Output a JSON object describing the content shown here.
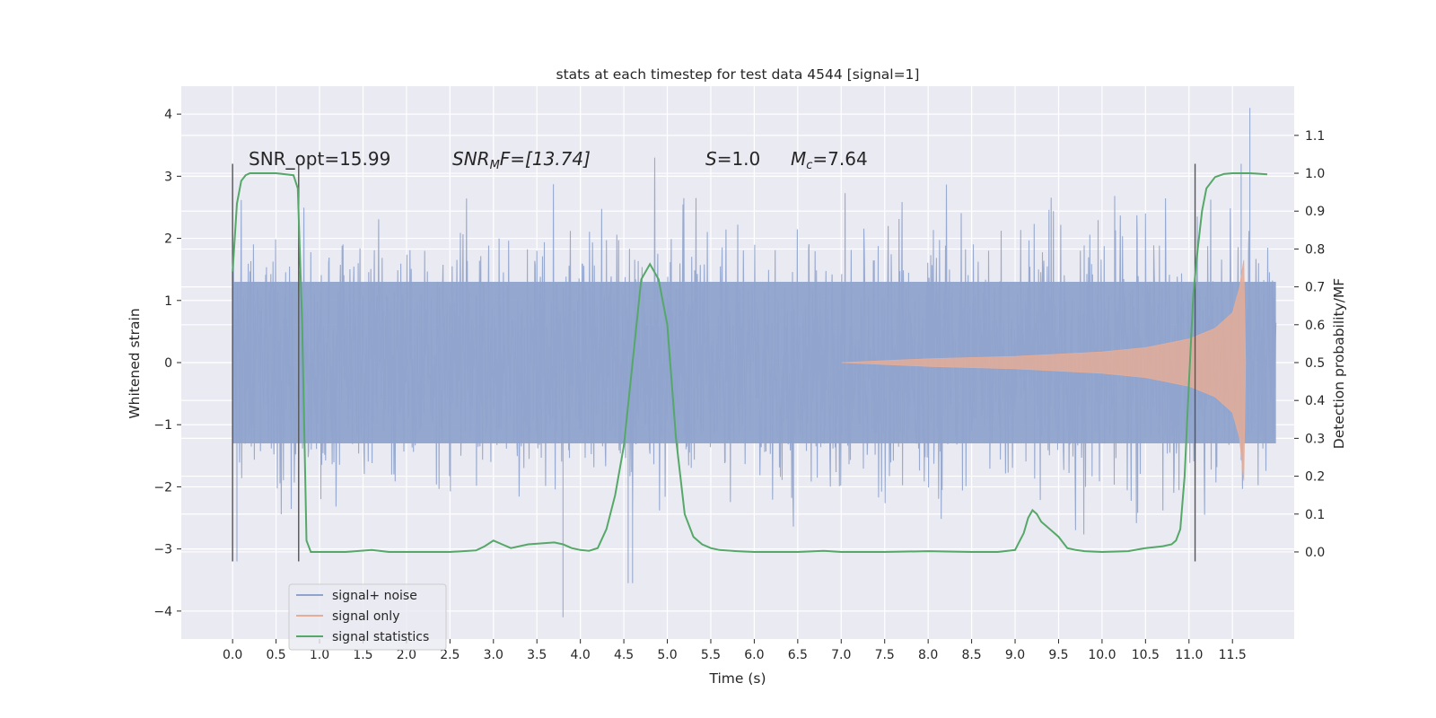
{
  "chart_data": {
    "type": "line",
    "title": "stats at each timestep for test data 4544 [signal=1]",
    "xlabel": "Time (s)",
    "ylabel": "Whitened strain",
    "y2label": "Detection probability/MF",
    "xlim": [
      -0.59,
      12.21
    ],
    "ylim": [
      -4.45,
      4.45
    ],
    "y2lim": [
      -0.23,
      1.23
    ],
    "x_ticks": [
      "0.0",
      "0.5",
      "1.0",
      "1.5",
      "2.0",
      "2.5",
      "3.0",
      "3.5",
      "4.0",
      "4.5",
      "5.0",
      "5.5",
      "6.0",
      "6.5",
      "7.0",
      "7.5",
      "8.0",
      "8.5",
      "9.0",
      "9.5",
      "10.0",
      "10.5",
      "11.0",
      "11.5"
    ],
    "y_ticks": [
      "4",
      "3",
      "2",
      "1",
      "0",
      "−1",
      "−2",
      "−3",
      "−4"
    ],
    "y2_ticks": [
      "1.1",
      "1.0",
      "0.9",
      "0.8",
      "0.7",
      "0.6",
      "0.5",
      "0.4",
      "0.3",
      "0.2",
      "0.1",
      "0.0"
    ],
    "grid": true,
    "legend_position": "lower-left",
    "annotations": {
      "snr_opt": "SNR_opt=15.99",
      "snr_mf_base": "SNR",
      "snr_mf_sub": "M",
      "snr_mf_rest": "F=[13.74]",
      "s_label": "S",
      "s_value": "=1.0",
      "mc_label": "M",
      "mc_sub": "c",
      "mc_value": "=7.64"
    },
    "vertical_markers": [
      0.0,
      0.76,
      11.07
    ],
    "series": [
      {
        "name": "signal+ noise",
        "color": "#8fa3cc",
        "t_range": [
          0.0,
          12.0
        ],
        "typical_range": [
          -1.3,
          1.3
        ],
        "peak_envelope": [
          -2.8,
          3.3
        ],
        "notable_extremes": [
          [
            0.05,
            -3.2
          ],
          [
            0.76,
            -3.2
          ],
          [
            3.8,
            -4.1
          ],
          [
            4.55,
            -3.55
          ],
          [
            4.6,
            -3.55
          ],
          [
            11.7,
            4.1
          ],
          [
            11.6,
            3.2
          ]
        ]
      },
      {
        "name": "signal only",
        "color": "#e5ad98",
        "envelope": [
          [
            7.0,
            0.0
          ],
          [
            8.0,
            0.06
          ],
          [
            9.0,
            0.1
          ],
          [
            10.0,
            0.17
          ],
          [
            10.5,
            0.24
          ],
          [
            11.0,
            0.38
          ],
          [
            11.3,
            0.55
          ],
          [
            11.5,
            0.8
          ],
          [
            11.58,
            1.2
          ],
          [
            11.63,
            1.65
          ],
          [
            11.65,
            0.0
          ]
        ],
        "lower_tip": [
          11.62,
          -1.9
        ]
      },
      {
        "name": "signal statistics",
        "color": "#55a868",
        "x": [
          0.0,
          0.05,
          0.1,
          0.15,
          0.2,
          0.3,
          0.5,
          0.7,
          0.75,
          0.8,
          0.85,
          0.9,
          1.0,
          1.3,
          1.6,
          1.8,
          2.0,
          2.5,
          2.8,
          2.9,
          3.0,
          3.1,
          3.2,
          3.4,
          3.7,
          3.8,
          3.9,
          4.0,
          4.1,
          4.2,
          4.3,
          4.4,
          4.5,
          4.6,
          4.7,
          4.8,
          4.9,
          5.0,
          5.1,
          5.2,
          5.3,
          5.4,
          5.5,
          5.6,
          5.8,
          6.0,
          6.5,
          6.8,
          7.0,
          7.5,
          8.0,
          8.5,
          8.8,
          9.0,
          9.1,
          9.15,
          9.2,
          9.25,
          9.3,
          9.4,
          9.5,
          9.6,
          9.7,
          9.8,
          10.0,
          10.3,
          10.5,
          10.7,
          10.8,
          10.85,
          10.9,
          10.95,
          11.0,
          11.05,
          11.1,
          11.15,
          11.2,
          11.3,
          11.4,
          11.5,
          11.7,
          11.9
        ],
        "y": [
          0.74,
          0.92,
          0.98,
          0.995,
          1.0,
          1.0,
          1.0,
          0.995,
          0.96,
          0.6,
          0.03,
          0.0,
          0.0,
          0.0,
          0.005,
          0.0,
          0.0,
          0.0,
          0.004,
          0.015,
          0.03,
          0.02,
          0.01,
          0.02,
          0.025,
          0.02,
          0.01,
          0.005,
          0.003,
          0.01,
          0.06,
          0.15,
          0.28,
          0.5,
          0.72,
          0.76,
          0.72,
          0.6,
          0.3,
          0.1,
          0.04,
          0.02,
          0.01,
          0.005,
          0.002,
          0.0,
          0.0,
          0.003,
          0.0,
          0.0,
          0.002,
          0.0,
          0.0,
          0.005,
          0.05,
          0.09,
          0.11,
          0.1,
          0.08,
          0.06,
          0.04,
          0.01,
          0.005,
          0.002,
          0.0,
          0.002,
          0.01,
          0.015,
          0.02,
          0.03,
          0.06,
          0.2,
          0.45,
          0.68,
          0.8,
          0.9,
          0.96,
          0.99,
          0.998,
          1.0,
          1.0,
          0.997
        ]
      }
    ]
  }
}
